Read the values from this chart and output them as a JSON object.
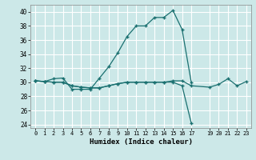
{
  "xlabel": "Humidex (Indice chaleur)",
  "xlim": [
    -0.5,
    23.5
  ],
  "ylim": [
    23.5,
    41.0
  ],
  "yticks": [
    24,
    26,
    28,
    30,
    32,
    34,
    36,
    38,
    40
  ],
  "xticks": [
    0,
    1,
    2,
    3,
    4,
    5,
    6,
    7,
    8,
    9,
    10,
    11,
    12,
    13,
    14,
    15,
    16,
    17,
    19,
    20,
    21,
    22,
    23
  ],
  "bg_color": "#cce8e8",
  "grid_color": "#ffffff",
  "line_color": "#1a7070",
  "series": [
    {
      "x": [
        0,
        1,
        2,
        3,
        4,
        5,
        6,
        7,
        8,
        9,
        10,
        11,
        12,
        13,
        14,
        15,
        16,
        17
      ],
      "y": [
        30.2,
        30.1,
        30.5,
        30.6,
        29.0,
        29.0,
        29.0,
        30.6,
        32.2,
        34.2,
        36.5,
        38.0,
        38.0,
        39.2,
        39.2,
        40.2,
        37.5,
        30.0
      ]
    },
    {
      "x": [
        0,
        1,
        2,
        3,
        4,
        5,
        6,
        7,
        8,
        9,
        10,
        11,
        12,
        13,
        14,
        15,
        16,
        17,
        19,
        20,
        21,
        22,
        23
      ],
      "y": [
        30.2,
        30.1,
        30.0,
        30.0,
        29.5,
        29.3,
        29.2,
        29.2,
        29.5,
        29.8,
        30.0,
        30.0,
        30.0,
        30.0,
        30.0,
        30.2,
        30.2,
        29.5,
        29.3,
        29.7,
        30.5,
        29.5,
        30.1
      ]
    },
    {
      "x": [
        0,
        1,
        2,
        3,
        4,
        5,
        6,
        7,
        8,
        9,
        10,
        11,
        12,
        13,
        14,
        15,
        16,
        17
      ],
      "y": [
        30.2,
        30.1,
        30.0,
        30.0,
        29.5,
        29.3,
        29.2,
        29.2,
        29.5,
        29.8,
        30.0,
        30.0,
        30.0,
        30.0,
        30.0,
        30.0,
        29.5,
        24.2
      ]
    }
  ]
}
